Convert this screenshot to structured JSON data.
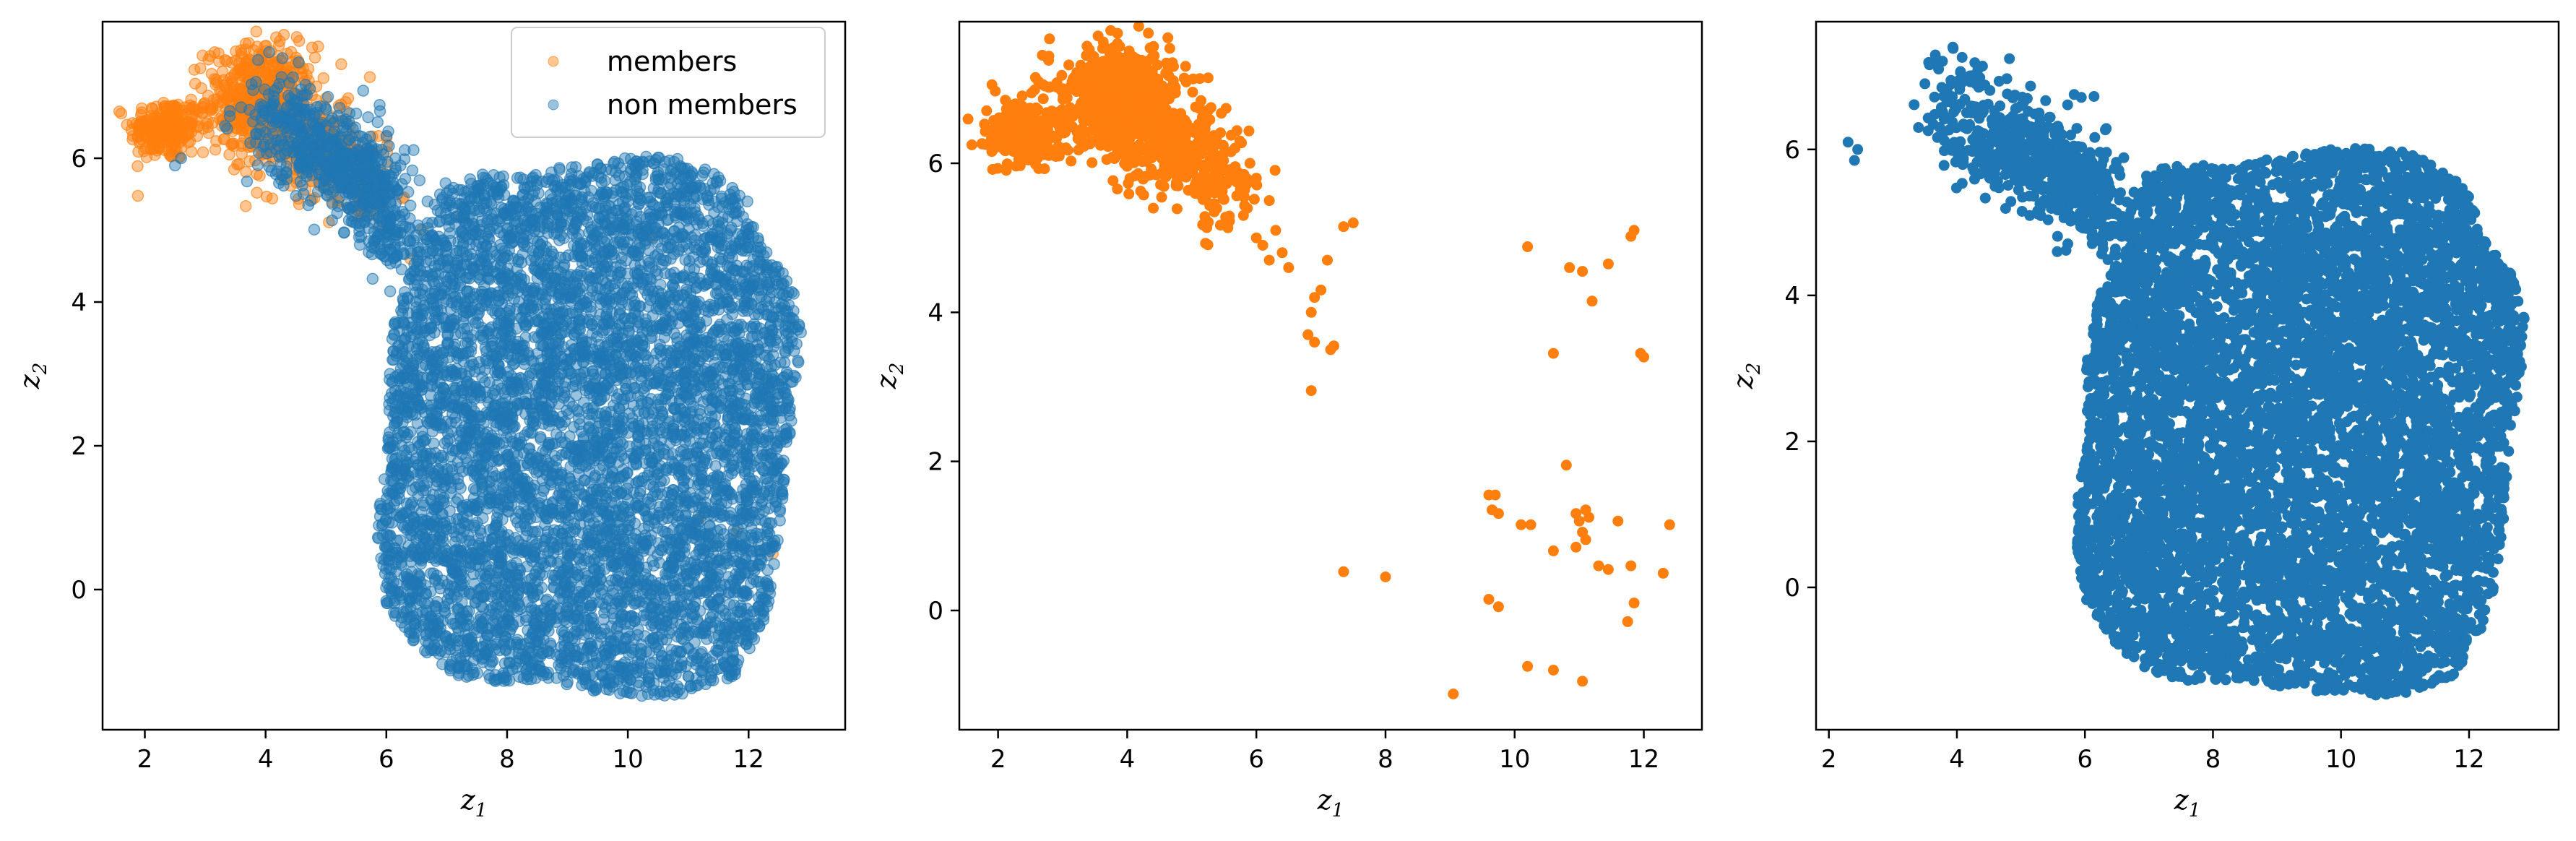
{
  "colors": {
    "members": "#ff7f0e",
    "non_members": "#1f77b4",
    "axes": "#000000",
    "background": "#ffffff"
  },
  "chart_data": [
    {
      "type": "scatter",
      "title": "",
      "xlabel": "z",
      "xlabel_sub": "1",
      "ylabel": "z",
      "ylabel_sub": "2",
      "xlim": [
        1.3,
        13.6
      ],
      "ylim": [
        -1.95,
        7.9
      ],
      "xticks": [
        2,
        4,
        6,
        8,
        10,
        12
      ],
      "yticks": [
        0,
        2,
        4,
        6
      ],
      "grid": false,
      "legend": {
        "placement": "top-right",
        "entries": [
          "members",
          "non members"
        ]
      },
      "series": [
        {
          "name": "members",
          "color": "#ff7f0e",
          "opacity": 0.45,
          "clusters": [
            {
              "cx": 2.35,
              "cy": 6.4,
              "sx": 0.3,
              "sy": 0.22,
              "n": 220
            },
            {
              "cx": 3.9,
              "cy": 6.8,
              "sx": 0.45,
              "sy": 0.38,
              "n": 520
            },
            {
              "cx": 4.9,
              "cy": 6.1,
              "sx": 0.5,
              "sy": 0.3,
              "n": 200
            },
            {
              "cx": 5.6,
              "cy": 5.5,
              "sx": 0.3,
              "sy": 0.25,
              "n": 50
            }
          ],
          "points": [
            [
              6.6,
              5.0
            ],
            [
              7.2,
              5.2
            ],
            [
              10.4,
              4.9
            ],
            [
              11.2,
              1.0
            ],
            [
              11.8,
              0.8
            ],
            [
              12.4,
              0.5
            ],
            [
              6.4,
              4.6
            ]
          ]
        },
        {
          "name": "non members",
          "color": "#1f77b4",
          "opacity": 0.45,
          "shape": "main",
          "n": 6500,
          "clusters": [
            {
              "cx": 4.25,
              "cy": 6.6,
              "sx": 0.35,
              "sy": 0.35,
              "n": 120
            },
            {
              "cx": 5.0,
              "cy": 6.1,
              "sx": 0.45,
              "sy": 0.3,
              "n": 260
            },
            {
              "cx": 5.7,
              "cy": 5.6,
              "sx": 0.35,
              "sy": 0.3,
              "n": 220
            },
            {
              "cx": 6.1,
              "cy": 4.9,
              "sx": 0.25,
              "sy": 0.25,
              "n": 100
            }
          ],
          "points": [
            [
              2.5,
              5.9
            ],
            [
              2.6,
              6.0
            ]
          ]
        }
      ]
    },
    {
      "type": "scatter",
      "title": "",
      "xlabel": "z",
      "xlabel_sub": "1",
      "ylabel": "z",
      "ylabel_sub": "2",
      "xlim": [
        1.4,
        12.9
      ],
      "ylim": [
        -1.6,
        7.9
      ],
      "xticks": [
        2,
        4,
        6,
        8,
        10,
        12
      ],
      "yticks": [
        0,
        2,
        4,
        6
      ],
      "grid": false,
      "series": [
        {
          "name": "members",
          "color": "#ff7f0e",
          "opacity": 1,
          "clusters": [
            {
              "cx": 2.4,
              "cy": 6.4,
              "sx": 0.3,
              "sy": 0.2,
              "n": 260
            },
            {
              "cx": 3.9,
              "cy": 6.85,
              "sx": 0.45,
              "sy": 0.35,
              "n": 650
            },
            {
              "cx": 4.9,
              "cy": 6.1,
              "sx": 0.45,
              "sy": 0.3,
              "n": 230
            },
            {
              "cx": 5.5,
              "cy": 5.6,
              "sx": 0.3,
              "sy": 0.25,
              "n": 60
            }
          ],
          "points": [
            [
              6.0,
              5.0
            ],
            [
              6.1,
              4.9
            ],
            [
              6.2,
              4.7
            ],
            [
              6.3,
              5.1
            ],
            [
              6.4,
              4.8
            ],
            [
              6.5,
              4.6
            ],
            [
              6.2,
              5.5
            ],
            [
              5.8,
              5.3
            ],
            [
              7.35,
              5.15
            ],
            [
              7.5,
              5.2
            ],
            [
              7.1,
              4.7
            ],
            [
              7.0,
              4.3
            ],
            [
              6.9,
              4.2
            ],
            [
              6.85,
              4.0
            ],
            [
              6.8,
              3.7
            ],
            [
              6.9,
              3.6
            ],
            [
              7.2,
              3.55
            ],
            [
              7.15,
              3.5
            ],
            [
              6.85,
              2.95
            ],
            [
              10.2,
              4.88
            ],
            [
              10.85,
              4.6
            ],
            [
              11.05,
              4.55
            ],
            [
              11.45,
              4.65
            ],
            [
              11.8,
              5.02
            ],
            [
              11.85,
              5.1
            ],
            [
              11.2,
              4.15
            ],
            [
              10.6,
              3.45
            ],
            [
              11.95,
              3.45
            ],
            [
              12.0,
              3.4
            ],
            [
              10.8,
              1.95
            ],
            [
              9.7,
              1.55
            ],
            [
              9.6,
              1.55
            ],
            [
              9.75,
              1.3
            ],
            [
              9.65,
              1.35
            ],
            [
              10.1,
              1.15
            ],
            [
              10.25,
              1.15
            ],
            [
              11.0,
              1.2
            ],
            [
              11.1,
              1.35
            ],
            [
              11.15,
              1.25
            ],
            [
              11.05,
              1.05
            ],
            [
              11.1,
              0.95
            ],
            [
              10.95,
              1.3
            ],
            [
              11.6,
              1.2
            ],
            [
              12.4,
              1.15
            ],
            [
              11.3,
              0.6
            ],
            [
              11.45,
              0.55
            ],
            [
              11.8,
              0.6
            ],
            [
              12.3,
              0.5
            ],
            [
              10.6,
              0.8
            ],
            [
              10.95,
              0.85
            ],
            [
              11.85,
              0.1
            ],
            [
              11.75,
              -0.15
            ],
            [
              9.6,
              0.15
            ],
            [
              9.75,
              0.05
            ],
            [
              7.35,
              0.52
            ],
            [
              8.0,
              0.45
            ],
            [
              10.2,
              -0.75
            ],
            [
              10.6,
              -0.8
            ],
            [
              11.05,
              -0.95
            ],
            [
              9.05,
              -1.12
            ],
            [
              6.0,
              5.8
            ],
            [
              5.9,
              6.0
            ]
          ]
        }
      ]
    },
    {
      "type": "scatter",
      "title": "",
      "xlabel": "z",
      "xlabel_sub": "1",
      "ylabel": "z",
      "ylabel_sub": "2",
      "xlim": [
        1.8,
        13.4
      ],
      "ylim": [
        -1.95,
        7.75
      ],
      "xticks": [
        2,
        4,
        6,
        8,
        10,
        12
      ],
      "yticks": [
        0,
        2,
        4,
        6
      ],
      "grid": false,
      "series": [
        {
          "name": "non members",
          "color": "#1f77b4",
          "opacity": 1,
          "shape": "main",
          "n": 7000,
          "clusters": [
            {
              "cx": 4.1,
              "cy": 6.7,
              "sx": 0.35,
              "sy": 0.35,
              "n": 80
            },
            {
              "cx": 4.9,
              "cy": 6.1,
              "sx": 0.45,
              "sy": 0.3,
              "n": 260
            },
            {
              "cx": 5.7,
              "cy": 5.6,
              "sx": 0.35,
              "sy": 0.3,
              "n": 240
            },
            {
              "cx": 6.2,
              "cy": 5.1,
              "sx": 0.25,
              "sy": 0.25,
              "n": 100
            }
          ],
          "points": [
            [
              2.3,
              6.1
            ],
            [
              2.45,
              6.0
            ],
            [
              2.4,
              5.85
            ],
            [
              3.4,
              6.3
            ],
            [
              3.5,
              6.9
            ]
          ]
        }
      ]
    }
  ]
}
